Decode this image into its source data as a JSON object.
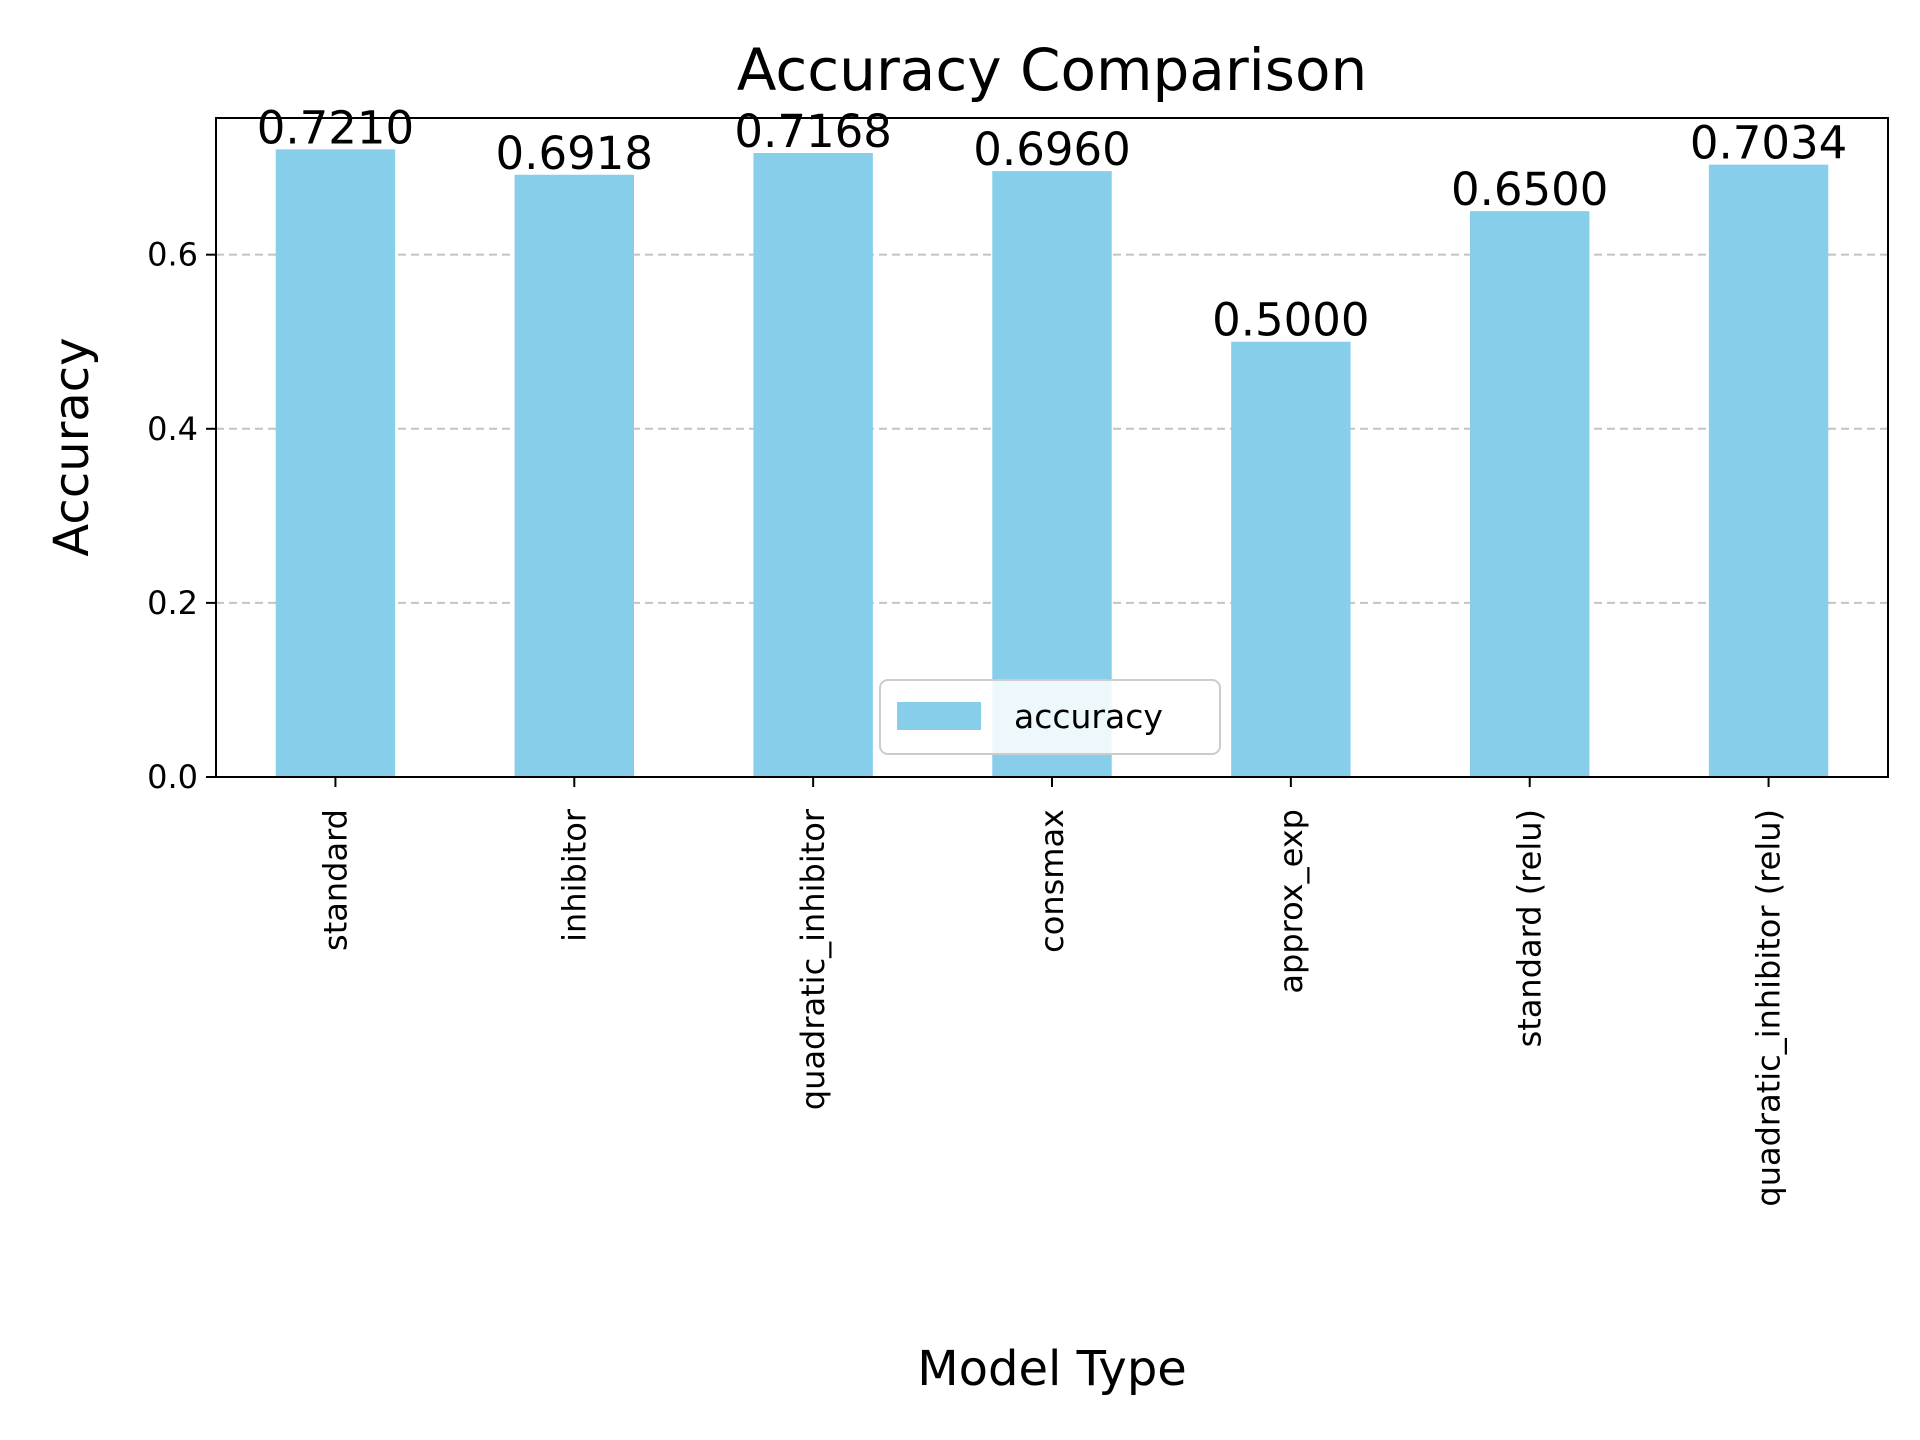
{
  "chart_data": {
    "type": "bar",
    "title": "Accuracy Comparison",
    "xlabel": "Model Type",
    "ylabel": "Accuracy",
    "categories": [
      "standard",
      "inhibitor",
      "quadratic_inhibitor",
      "consmax",
      "approx_exp",
      "standard (relu)",
      "quadratic_inhibitor (relu)"
    ],
    "series": [
      {
        "name": "accuracy",
        "values": [
          0.721,
          0.6918,
          0.7168,
          0.696,
          0.5,
          0.65,
          0.7034
        ],
        "color": "#87ceeb"
      }
    ],
    "data_labels": [
      "0.7210",
      "0.6918",
      "0.7168",
      "0.6960",
      "0.5000",
      "0.6500",
      "0.7034"
    ],
    "ylim": [
      0,
      0.757
    ],
    "yticks": [
      0.0,
      0.2,
      0.4,
      0.6
    ],
    "ytick_labels": [
      "0.0",
      "0.2",
      "0.4",
      "0.6"
    ],
    "grid": "y-dashed",
    "legend_position": "lower center"
  }
}
